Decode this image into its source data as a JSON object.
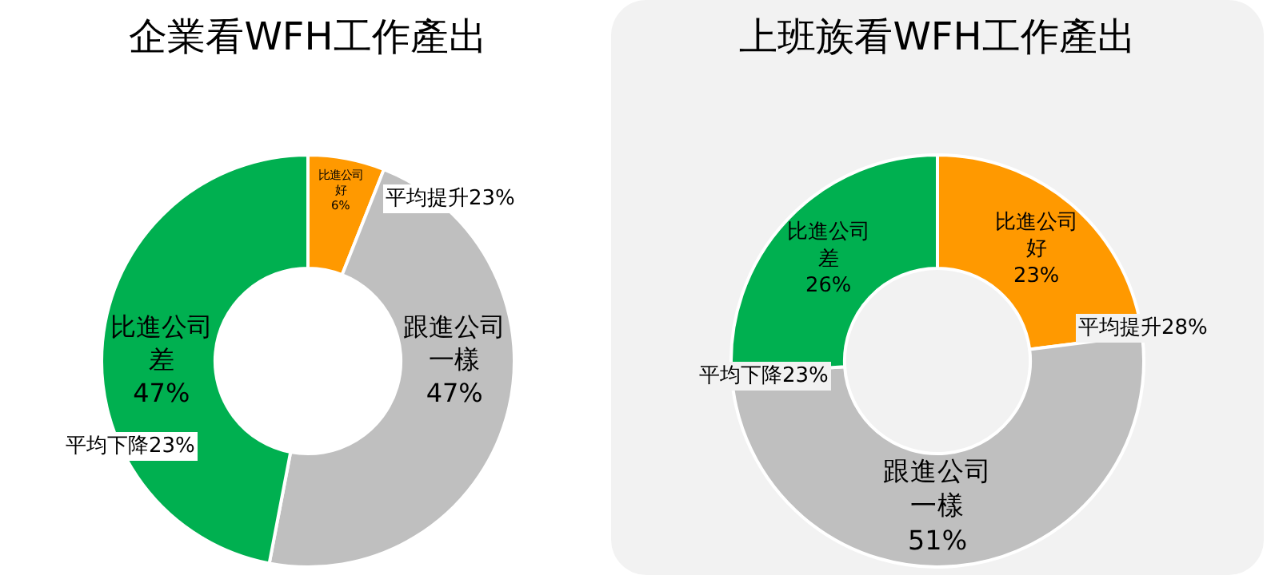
{
  "chart_data": [
    {
      "type": "donut",
      "title": "企業看WFH工作產出",
      "categories": [
        "比進公司好",
        "跟進公司一樣",
        "比進公司差"
      ],
      "values": [
        6,
        47,
        47
      ],
      "value_labels": [
        "6%",
        "47%",
        "47%"
      ],
      "colors": [
        "#ff9900",
        "#bfbfbf",
        "#00b050"
      ],
      "legend": false,
      "annotations": [
        "平均提升23%",
        "平均下降23%"
      ]
    },
    {
      "type": "donut",
      "title": "上班族看WFH工作產出",
      "categories": [
        "比進公司好",
        "跟進公司一樣",
        "比進公司差"
      ],
      "values": [
        23,
        51,
        26
      ],
      "value_labels": [
        "23%",
        "51%",
        "26%"
      ],
      "colors": [
        "#ff9900",
        "#bfbfbf",
        "#00b050"
      ],
      "legend": false,
      "annotations": [
        "平均提升28%",
        "平均下降23%"
      ]
    }
  ]
}
